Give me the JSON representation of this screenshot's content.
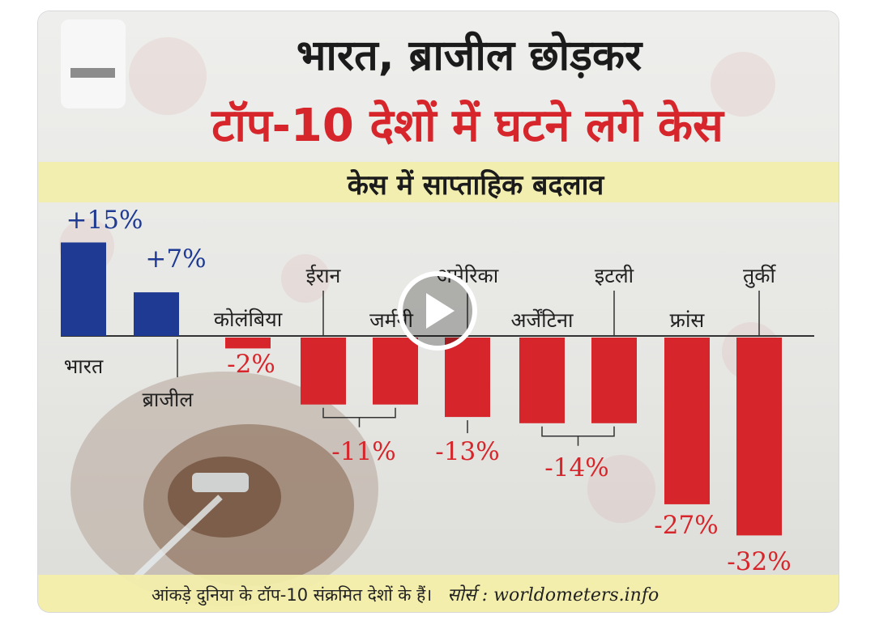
{
  "header": {
    "title_line1": "भारत, ब्राजील छोड़कर",
    "title_line2": "टॉप-10 देशों में घटने लगे केस"
  },
  "footer": {
    "note": "आंकड़े दुनिया के टॉप-10 संक्रमित देशों के हैं।",
    "source": "सोर्स : worldometers.info"
  },
  "colors": {
    "positive": "#1f3a93",
    "negative": "#d6262b",
    "band": "#f3eeaa"
  },
  "chart_data": {
    "type": "bar",
    "title": "केस में साप्ताहिक बदलाव",
    "categories": [
      "भारत",
      "ब्राजील",
      "कोलंबिया",
      "ईरान",
      "जर्मनी",
      "अमेरिका",
      "अर्जेंटिना",
      "इटली",
      "फ्रांस",
      "तुर्की"
    ],
    "values": [
      15,
      7,
      -2,
      -11,
      -11,
      -13,
      -14,
      -14,
      -27,
      -32
    ],
    "group_labels": [
      {
        "text": "+15%",
        "members": [
          0
        ]
      },
      {
        "text": "+7%",
        "members": [
          1
        ]
      },
      {
        "text": "-2%",
        "members": [
          2
        ]
      },
      {
        "text": "-11%",
        "members": [
          3,
          4
        ]
      },
      {
        "text": "-13%",
        "members": [
          5
        ]
      },
      {
        "text": "-14%",
        "members": [
          6,
          7
        ]
      },
      {
        "text": "-27%",
        "members": [
          8
        ]
      },
      {
        "text": "-32%",
        "members": [
          9
        ]
      }
    ],
    "unit": "%",
    "xlabel": "",
    "ylabel": "",
    "ylim": [
      -34,
      16
    ],
    "grid": false,
    "legend": "none"
  }
}
